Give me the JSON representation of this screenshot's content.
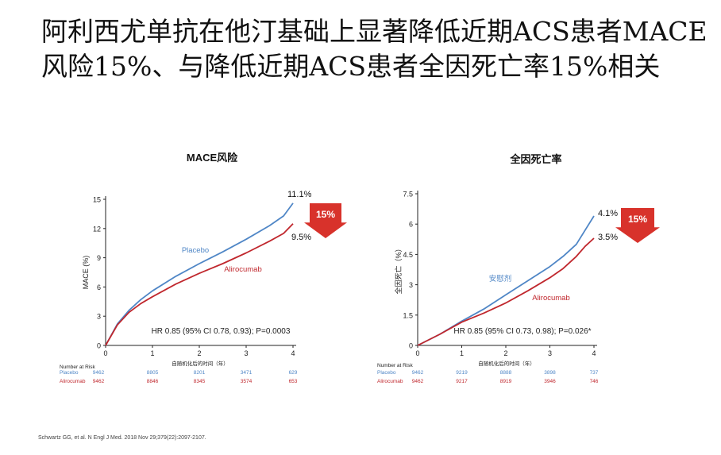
{
  "slide_title": "阿利西尤单抗在他汀基础上显著降低近期ACS患者MACE风险15%、与降低近期ACS患者全因死亡率15%相关",
  "colors": {
    "placebo": "#4f86c6",
    "alirocumab": "#c0272d",
    "arrow": "#d8322b"
  },
  "citation": "Schwartz GG, et al. N Engl J Med. 2018 Nov 29;379(22):2097-2107.",
  "chart_data": [
    {
      "type": "line",
      "title": "MACE风险",
      "ylabel": "MACE (%)",
      "xlabel": "自随机化后的时间（年）",
      "xlim": [
        0,
        4
      ],
      "ylim": [
        0,
        15
      ],
      "yticks": [
        "0",
        "3",
        "6",
        "9",
        "12",
        "15"
      ],
      "xticks": [
        "0",
        "1",
        "2",
        "3",
        "4"
      ],
      "series": [
        {
          "name": "Placebo",
          "end_label": "11.1%",
          "x": [
            0,
            0.25,
            0.5,
            0.75,
            1,
            1.5,
            2,
            2.5,
            3,
            3.5,
            3.8,
            4
          ],
          "values": [
            0,
            2.2,
            3.6,
            4.7,
            5.6,
            7.1,
            8.4,
            9.6,
            10.9,
            12.3,
            13.3,
            14.6
          ]
        },
        {
          "name": "Alirocumab",
          "end_label": "9.5%",
          "x": [
            0,
            0.25,
            0.5,
            0.75,
            1,
            1.5,
            2,
            2.5,
            3,
            3.5,
            3.8,
            4
          ],
          "values": [
            0,
            2.1,
            3.4,
            4.3,
            5.0,
            6.3,
            7.4,
            8.4,
            9.5,
            10.7,
            11.5,
            12.5
          ]
        }
      ],
      "annotation": "HR 0.85 (95% CI 0.78, 0.93); P=0.0003",
      "reduction": "15%",
      "risk_table": {
        "header": "Number at Risk",
        "rows": [
          {
            "name": "Placebo",
            "values": [
              "9462",
              "8805",
              "8201",
              "3471",
              "629"
            ]
          },
          {
            "name": "Alirocumab",
            "values": [
              "9462",
              "8846",
              "8345",
              "3574",
              "653"
            ]
          }
        ]
      }
    },
    {
      "type": "line",
      "title": "全因死亡率",
      "ylabel": "全因死亡（%）",
      "xlabel": "自随机化后的时间（年）",
      "xlim": [
        0,
        4
      ],
      "ylim": [
        0,
        7.5
      ],
      "yticks": [
        "0",
        "1.5",
        "3",
        "4.5",
        "6",
        "7.5"
      ],
      "xticks": [
        "0",
        "1",
        "2",
        "3",
        "4"
      ],
      "series": [
        {
          "name": "安慰剂",
          "end_label": "4.1%",
          "x": [
            0,
            0.5,
            1,
            1.5,
            2,
            2.5,
            3,
            3.3,
            3.6,
            3.8,
            4
          ],
          "values": [
            0,
            0.55,
            1.2,
            1.8,
            2.5,
            3.2,
            3.9,
            4.4,
            5.0,
            5.7,
            6.4
          ]
        },
        {
          "name": "Alirocumab",
          "end_label": "3.5%",
          "x": [
            0,
            0.5,
            1,
            1.5,
            2,
            2.5,
            3,
            3.3,
            3.6,
            3.8,
            4
          ],
          "values": [
            0,
            0.55,
            1.15,
            1.6,
            2.1,
            2.7,
            3.35,
            3.8,
            4.4,
            4.9,
            5.3
          ]
        }
      ],
      "annotation": "HR 0.85 (95% CI 0.73, 0.98); P=0.026*",
      "reduction": "15%",
      "risk_table": {
        "header": "Number at Risk",
        "rows": [
          {
            "name": "Placebo",
            "values": [
              "9462",
              "9219",
              "8888",
              "3898",
              "737"
            ]
          },
          {
            "name": "Alirocumab",
            "values": [
              "9462",
              "9217",
              "8919",
              "3946",
              "746"
            ]
          }
        ]
      }
    }
  ]
}
